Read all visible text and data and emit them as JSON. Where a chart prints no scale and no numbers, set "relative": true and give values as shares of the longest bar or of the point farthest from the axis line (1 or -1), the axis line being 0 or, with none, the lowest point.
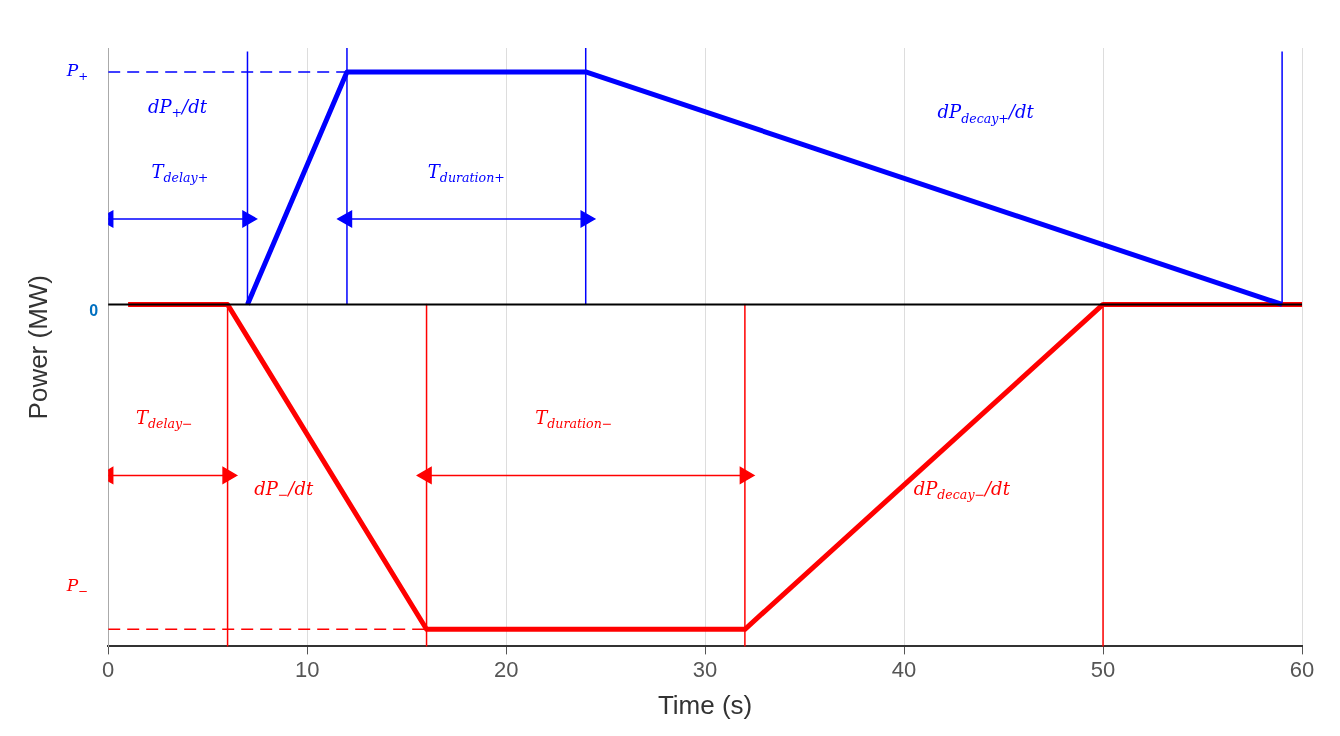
{
  "chart_data": {
    "type": "line",
    "relative": true,
    "xlabel": "Time (s)",
    "ylabel": "Power (MW)",
    "xlim": [
      0,
      60
    ],
    "xticks": [
      0,
      10,
      20,
      30,
      40,
      50,
      60
    ],
    "grid": "x",
    "legend": false,
    "marker": "none",
    "line_style": "solid",
    "series": [
      {
        "color": "#0000ff",
        "x": [
          7,
          12,
          24,
          59
        ],
        "values": [
          0,
          0.68,
          0.68,
          0
        ]
      },
      {
        "color": "#ff0000",
        "x": [
          1,
          6,
          16,
          32,
          50,
          60
        ],
        "values": [
          0,
          0,
          -0.95,
          -0.95,
          0,
          0
        ]
      },
      {
        "color": "#0000ff",
        "x": [
          0,
          12
        ],
        "values": [
          0.68,
          0.68
        ],
        "line_style": "dashed"
      },
      {
        "color": "#ff0000",
        "x": [
          0,
          16
        ],
        "values": [
          -0.95,
          -0.95
        ],
        "line_style": "dashed"
      },
      {
        "color": "#0000ff",
        "x": [
          7,
          7
        ],
        "values": [
          0,
          0.74
        ]
      },
      {
        "color": "#0000ff",
        "x": [
          12,
          12
        ],
        "values": [
          0,
          0.75
        ]
      },
      {
        "color": "#0000ff",
        "x": [
          24,
          24
        ],
        "values": [
          0,
          0.75
        ]
      },
      {
        "color": "#0000ff",
        "x": [
          59,
          59
        ],
        "values": [
          0,
          0.74
        ]
      },
      {
        "color": "#ff0000",
        "x": [
          6,
          6
        ],
        "values": [
          0,
          -1
        ]
      },
      {
        "color": "#ff0000",
        "x": [
          16,
          16
        ],
        "values": [
          0,
          -1
        ]
      },
      {
        "color": "#ff0000",
        "x": [
          32,
          32
        ],
        "values": [
          0,
          -1
        ]
      },
      {
        "color": "#ff0000",
        "x": [
          50,
          50
        ],
        "values": [
          0,
          -1
        ]
      },
      {
        "color": "#0000ff",
        "x": [
          0,
          7
        ],
        "values": [
          0.25,
          0.25
        ],
        "marker": "triangle"
      },
      {
        "color": "#0000ff",
        "x": [
          12,
          24
        ],
        "values": [
          0.25,
          0.25
        ],
        "marker": "triangle"
      },
      {
        "color": "#ff0000",
        "x": [
          0,
          6
        ],
        "values": [
          -0.5,
          -0.5
        ],
        "marker": "triangle"
      },
      {
        "color": "#ff0000",
        "x": [
          16,
          32
        ],
        "values": [
          -0.5,
          -0.5
        ],
        "marker": "triangle"
      }
    ],
    "ref_lines": [
      {
        "axis": "y",
        "value": 0,
        "color": "#000000"
      }
    ],
    "annotations": [
      "P$_{+}$",
      "0",
      "P$_{−}$",
      "T$_{delay+}$",
      "dP$_{+}$/dt",
      "T$_{duration+}$",
      "dP$_{decay+}$/dt",
      "T$_{delay−}$",
      "dP$_{−}$/dt",
      "T$_{duration−}$",
      "dP$_{decay−}$/dt"
    ]
  }
}
